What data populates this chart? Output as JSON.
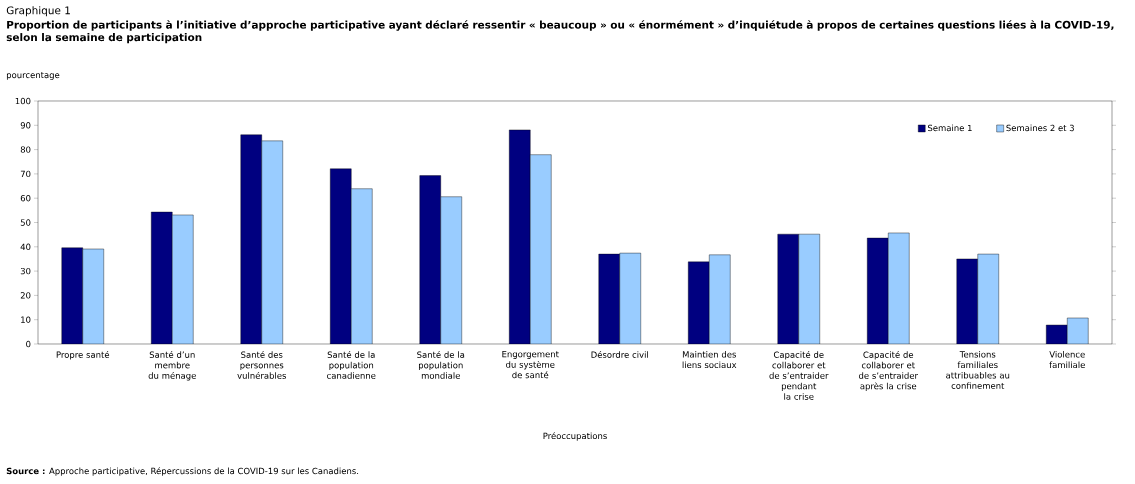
{
  "chart_data": {
    "type": "bar",
    "title": "Graphique 1",
    "subtitle": "Proportion de participants à l’initiative d’approche participative ayant déclaré ressentir « beaucoup » ou « énormément » d’inquiétude à propos de certaines questions liées à la COVID-19, selon la semaine de participation",
    "ylabel": "pourcentage",
    "xlabel": "Préoccupations",
    "categories": [
      "Propre santé",
      "Santé d’un membre du ménage",
      "Santé des personnes vulnérables",
      "Santé de la population canadienne",
      "Santé de la population mondiale",
      "Engorgement du système de santé",
      "Désordre civil",
      "Maintien des liens sociaux",
      "Capacité de collaborer et de s’entraider pendant la crise",
      "Capacité de collaborer et de s’entraider après la crise",
      "Tensions familiales attribuables au confinement",
      "Violence familiale"
    ],
    "series": [
      {
        "name": "Semaine 1",
        "color": "#000080",
        "values": [
          39.6,
          54.3,
          86.1,
          72.1,
          69.3,
          88.1,
          37.0,
          33.8,
          45.2,
          43.6,
          35.0,
          7.8
        ]
      },
      {
        "name": "Semaines 2 et 3",
        "color": "#99ccff",
        "values": [
          39.1,
          53.1,
          83.6,
          63.9,
          60.6,
          77.9,
          37.4,
          36.7,
          45.2,
          45.7,
          37.0,
          10.7
        ]
      }
    ],
    "ylim": [
      0,
      100
    ],
    "yticks": [
      0,
      10,
      20,
      30,
      40,
      50,
      60,
      70,
      80,
      90,
      100
    ],
    "grid": false,
    "legend": "top right",
    "annotations": [
      "**Source :** Approche participative, Répercussions de la COVID-19 sur les Canadiens."
    ]
  }
}
